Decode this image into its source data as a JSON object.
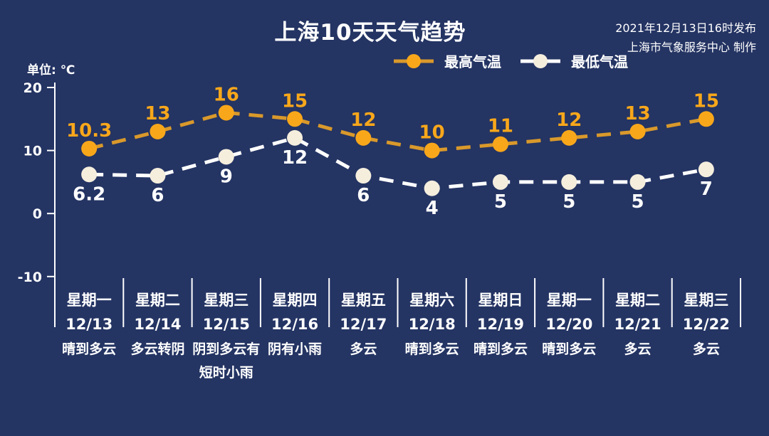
{
  "title": "上海10天天气趋势",
  "publish_info": {
    "line1": "2021年12月13日16时发布",
    "line2": "上海市气象服务中心 制作"
  },
  "unit_label": "单位: ℃",
  "legend": {
    "items": [
      {
        "label": "最高气温",
        "line_color": "#d9992b",
        "marker_color": "#f8a71b"
      },
      {
        "label": "最低气温",
        "line_color": "#ffffff",
        "marker_color": "#f5eedd"
      }
    ]
  },
  "colors": {
    "background": "#243463",
    "text": "#ffffff",
    "axis": "#ffffff",
    "high_line": "#d9992b",
    "high_marker": "#f8a71b",
    "high_label": "#f8a71b",
    "low_line": "#ffffff",
    "low_marker": "#f5eedd",
    "low_label": "#ffffff"
  },
  "chart_data": {
    "type": "line",
    "title": "上海10天天气趋势",
    "unit": "℃",
    "ylim": [
      -10,
      20
    ],
    "yticks": [
      20,
      10,
      0,
      -10
    ],
    "grid": false,
    "legend_position": "top",
    "categories": [
      {
        "day": "星期一",
        "date": "12/13",
        "weather": [
          "晴到多云"
        ]
      },
      {
        "day": "星期二",
        "date": "12/14",
        "weather": [
          "多云转阴"
        ]
      },
      {
        "day": "星期三",
        "date": "12/15",
        "weather": [
          "阴到多云有",
          "短时小雨"
        ]
      },
      {
        "day": "星期四",
        "date": "12/16",
        "weather": [
          "阴有小雨"
        ]
      },
      {
        "day": "星期五",
        "date": "12/17",
        "weather": [
          "多云"
        ]
      },
      {
        "day": "星期六",
        "date": "12/18",
        "weather": [
          "晴到多云"
        ]
      },
      {
        "day": "星期日",
        "date": "12/19",
        "weather": [
          "晴到多云"
        ]
      },
      {
        "day": "星期一",
        "date": "12/20",
        "weather": [
          "晴到多云"
        ]
      },
      {
        "day": "星期二",
        "date": "12/21",
        "weather": [
          "多云"
        ]
      },
      {
        "day": "星期三",
        "date": "12/22",
        "weather": [
          "多云"
        ]
      }
    ],
    "series": [
      {
        "name": "最高气温",
        "key": "high",
        "values": [
          10.3,
          13,
          16,
          15,
          12,
          10,
          11,
          12,
          13,
          15
        ]
      },
      {
        "name": "最低气温",
        "key": "low",
        "values": [
          6.2,
          6,
          9,
          12,
          6,
          4,
          5,
          5,
          5,
          7
        ]
      }
    ]
  }
}
